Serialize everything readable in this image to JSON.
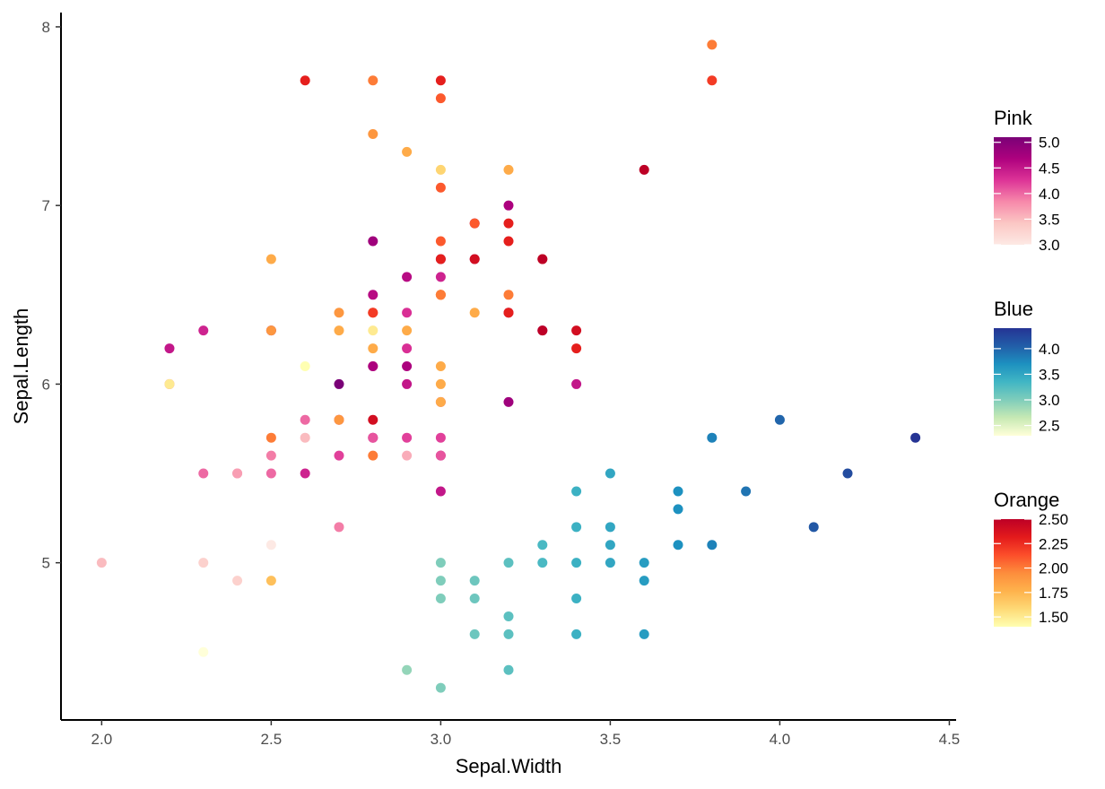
{
  "chart_data": {
    "type": "scatter",
    "xlabel": "Sepal.Width",
    "ylabel": "Sepal.Length",
    "xlim": [
      1.88,
      4.52
    ],
    "ylim": [
      4.12,
      8.08
    ],
    "x_ticks": [
      2.0,
      2.5,
      3.0,
      3.5,
      4.0,
      4.5
    ],
    "x_tick_labels": [
      "2.0",
      "2.5",
      "3.0",
      "3.5",
      "4.0",
      "4.5"
    ],
    "y_ticks": [
      5,
      6,
      7,
      8
    ],
    "y_tick_labels": [
      "5",
      "6",
      "7",
      "8"
    ],
    "grid": false,
    "legend_position": "right",
    "legends": [
      {
        "title": "Pink",
        "range": [
          3.0,
          5.1
        ],
        "tick_values": [
          3.0,
          3.5,
          4.0,
          4.5,
          5.0
        ],
        "tick_labels": [
          "3.0",
          "3.5",
          "4.0",
          "4.5",
          "5.0"
        ],
        "colors_low_to_high": [
          "#FDE9E4",
          "#FBC7C4",
          "#F789AA",
          "#DD3497",
          "#AE017E",
          "#7A0177"
        ]
      },
      {
        "title": "Blue",
        "range": [
          2.3,
          4.4
        ],
        "tick_values": [
          2.5,
          3.0,
          3.5,
          4.0
        ],
        "tick_labels": [
          "2.5",
          "3.0",
          "3.5",
          "4.0"
        ],
        "colors_low_to_high": [
          "#FFFFD9",
          "#C7E9B4",
          "#7FCDBB",
          "#41B6C4",
          "#1D91C0",
          "#225EA8",
          "#253494"
        ]
      },
      {
        "title": "Orange",
        "range": [
          1.4,
          2.5
        ],
        "tick_values": [
          1.5,
          1.75,
          2.0,
          2.25,
          2.5
        ],
        "tick_labels": [
          "1.50",
          "1.75",
          "2.00",
          "2.25",
          "2.50"
        ],
        "colors_low_to_high": [
          "#FFFFB2",
          "#FED976",
          "#FEB24C",
          "#FD8D3C",
          "#FC4E2A",
          "#E31A1C",
          "#BD0026"
        ]
      }
    ],
    "series": [
      {
        "name": "Blue",
        "points": [
          [
            3.5,
            5.1,
            3.5
          ],
          [
            3.0,
            4.9,
            3.0
          ],
          [
            3.2,
            4.7,
            3.2
          ],
          [
            3.1,
            4.6,
            3.1
          ],
          [
            3.6,
            5.0,
            3.6
          ],
          [
            3.9,
            5.4,
            3.9
          ],
          [
            3.4,
            4.6,
            3.4
          ],
          [
            3.4,
            5.0,
            3.4
          ],
          [
            2.9,
            4.4,
            2.9
          ],
          [
            3.1,
            4.9,
            3.1
          ],
          [
            3.7,
            5.4,
            3.7
          ],
          [
            3.4,
            4.8,
            3.4
          ],
          [
            3.0,
            4.8,
            3.0
          ],
          [
            3.0,
            4.3,
            3.0
          ],
          [
            4.0,
            5.8,
            4.0
          ],
          [
            4.4,
            5.7,
            4.4
          ],
          [
            3.8,
            5.1,
            3.8
          ],
          [
            3.7,
            5.1,
            3.7
          ],
          [
            3.3,
            5.1,
            3.3
          ],
          [
            3.2,
            5.0,
            3.2
          ],
          [
            4.1,
            5.2,
            4.1
          ],
          [
            4.2,
            5.5,
            4.2
          ],
          [
            3.6,
            4.9,
            3.6
          ],
          [
            3.2,
            4.4,
            3.2
          ],
          [
            3.5,
            5.0,
            3.5
          ],
          [
            3.8,
            5.7,
            3.8
          ],
          [
            3.4,
            5.4,
            3.4
          ],
          [
            3.5,
            5.5,
            3.5
          ],
          [
            3.6,
            4.6,
            3.6
          ],
          [
            3.5,
            5.2,
            3.5
          ],
          [
            3.4,
            5.2,
            3.4
          ],
          [
            3.3,
            5.0,
            3.3
          ],
          [
            3.2,
            4.6,
            3.2
          ],
          [
            3.7,
            5.3,
            3.7
          ],
          [
            3.0,
            5.0,
            3.0
          ],
          [
            3.1,
            4.8,
            3.1
          ],
          [
            2.3,
            4.5,
            2.3
          ]
        ]
      },
      {
        "name": "Pink",
        "points": [
          [
            3.2,
            7.0,
            4.7
          ],
          [
            3.2,
            6.4,
            4.5
          ],
          [
            3.1,
            6.9,
            4.9
          ],
          [
            2.3,
            5.5,
            4.0
          ],
          [
            2.8,
            6.5,
            4.6
          ],
          [
            2.8,
            5.7,
            4.5
          ],
          [
            3.3,
            6.3,
            4.7
          ],
          [
            2.4,
            4.9,
            3.3
          ],
          [
            2.9,
            6.6,
            4.6
          ],
          [
            2.7,
            5.2,
            3.9
          ],
          [
            2.0,
            5.0,
            3.5
          ],
          [
            3.0,
            5.9,
            4.2
          ],
          [
            2.2,
            6.0,
            4.0
          ],
          [
            2.9,
            6.1,
            4.7
          ],
          [
            2.9,
            5.6,
            3.6
          ],
          [
            3.1,
            6.7,
            4.4
          ],
          [
            3.0,
            5.6,
            4.5
          ],
          [
            2.7,
            5.8,
            4.1
          ],
          [
            2.2,
            6.2,
            4.5
          ],
          [
            2.5,
            5.6,
            3.9
          ],
          [
            3.2,
            5.9,
            4.8
          ],
          [
            2.8,
            6.1,
            4.0
          ],
          [
            2.5,
            6.3,
            4.9
          ],
          [
            2.8,
            6.1,
            4.7
          ],
          [
            2.9,
            6.4,
            4.3
          ],
          [
            3.0,
            6.6,
            4.4
          ],
          [
            2.8,
            6.8,
            4.8
          ],
          [
            3.0,
            6.7,
            5.0
          ],
          [
            2.9,
            6.0,
            4.5
          ],
          [
            2.6,
            5.7,
            3.5
          ],
          [
            2.4,
            5.5,
            3.8
          ],
          [
            2.4,
            5.5,
            3.7
          ],
          [
            2.7,
            5.8,
            3.9
          ],
          [
            2.7,
            6.0,
            5.1
          ],
          [
            3.0,
            5.4,
            4.5
          ],
          [
            3.4,
            6.0,
            4.5
          ],
          [
            2.3,
            6.3,
            4.4
          ],
          [
            3.0,
            5.6,
            4.1
          ],
          [
            2.5,
            5.5,
            4.0
          ],
          [
            2.6,
            5.5,
            4.4
          ],
          [
            2.6,
            5.8,
            4.0
          ],
          [
            2.3,
            5.0,
            3.3
          ],
          [
            2.7,
            5.6,
            4.2
          ],
          [
            3.0,
            5.7,
            4.2
          ],
          [
            2.9,
            5.7,
            4.2
          ],
          [
            2.9,
            6.2,
            4.3
          ],
          [
            2.5,
            5.1,
            3.0
          ],
          [
            2.8,
            5.7,
            4.1
          ]
        ]
      },
      {
        "name": "Orange",
        "points": [
          [
            3.3,
            6.3,
            2.5
          ],
          [
            2.7,
            5.8,
            1.9
          ],
          [
            3.0,
            7.1,
            2.1
          ],
          [
            2.9,
            6.3,
            1.8
          ],
          [
            3.0,
            6.5,
            2.2
          ],
          [
            3.0,
            7.6,
            2.1
          ],
          [
            2.5,
            4.9,
            1.7
          ],
          [
            2.9,
            7.3,
            1.8
          ],
          [
            2.5,
            6.7,
            1.8
          ],
          [
            3.6,
            7.2,
            2.5
          ],
          [
            3.2,
            6.5,
            2.0
          ],
          [
            2.7,
            6.4,
            1.9
          ],
          [
            3.0,
            6.8,
            2.1
          ],
          [
            2.5,
            5.7,
            2.0
          ],
          [
            2.8,
            5.8,
            2.4
          ],
          [
            3.2,
            6.4,
            2.3
          ],
          [
            3.0,
            6.5,
            1.8
          ],
          [
            3.8,
            7.7,
            2.2
          ],
          [
            2.6,
            7.7,
            2.3
          ],
          [
            2.2,
            6.0,
            1.5
          ],
          [
            3.2,
            6.9,
            2.3
          ],
          [
            2.8,
            5.6,
            2.0
          ],
          [
            2.8,
            7.7,
            2.0
          ],
          [
            2.7,
            6.3,
            1.8
          ],
          [
            3.3,
            6.7,
            2.1
          ],
          [
            3.2,
            7.2,
            1.8
          ],
          [
            2.8,
            6.2,
            1.8
          ],
          [
            3.0,
            6.1,
            1.8
          ],
          [
            2.8,
            6.4,
            2.1
          ],
          [
            3.0,
            7.2,
            1.6
          ],
          [
            2.8,
            7.4,
            1.9
          ],
          [
            3.8,
            7.9,
            2.0
          ],
          [
            2.8,
            6.4,
            2.2
          ],
          [
            2.8,
            6.3,
            1.5
          ],
          [
            2.6,
            6.1,
            1.4
          ],
          [
            3.0,
            7.7,
            2.3
          ],
          [
            3.4,
            6.3,
            2.4
          ],
          [
            3.1,
            6.4,
            1.8
          ],
          [
            3.0,
            6.0,
            1.8
          ],
          [
            3.1,
            6.9,
            2.1
          ],
          [
            3.1,
            6.7,
            2.4
          ],
          [
            3.2,
            6.8,
            2.3
          ],
          [
            3.3,
            6.7,
            2.5
          ],
          [
            3.0,
            6.7,
            2.3
          ],
          [
            2.5,
            6.3,
            1.9
          ],
          [
            3.0,
            6.5,
            2.0
          ],
          [
            3.4,
            6.2,
            2.3
          ],
          [
            3.0,
            5.9,
            1.8
          ]
        ]
      }
    ]
  }
}
